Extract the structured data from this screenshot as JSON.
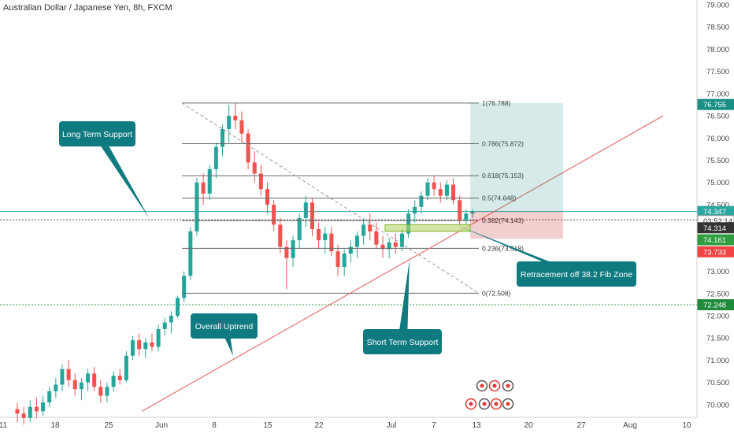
{
  "title": "Australian Dollar / Japanese Yen, 8h, FXCM",
  "chart_data": {
    "type": "candlestick",
    "title": "Australian Dollar / Japanese Yen, 8h, FXCM",
    "ylim": [
      69.75,
      79.0
    ],
    "y_ticks": [
      "79.000",
      "78.500",
      "78.000",
      "77.500",
      "77.000",
      "76.500",
      "76.000",
      "75.500",
      "75.000",
      "74.500",
      "74.000",
      "73.500",
      "73.000",
      "72.500",
      "72.000",
      "71.500",
      "71.000",
      "70.500",
      "70.000"
    ],
    "x_ticks": [
      "11",
      "18",
      "25",
      "Jun",
      "8",
      "15",
      "22",
      "Jul",
      "7",
      "13",
      "20",
      "27",
      "Aug",
      "10"
    ],
    "price_labels": [
      {
        "value": "76.755",
        "color": "#1a8f85"
      },
      {
        "value": "74.347",
        "color": "#2aa7a0"
      },
      {
        "value": "03:52:14",
        "color": "#ffffff",
        "text_color": "#333333"
      },
      {
        "value": "74.314",
        "color": "#333333"
      },
      {
        "value": "74.161",
        "color": "#2e9e3e"
      },
      {
        "value": "73.733",
        "color": "#ef4444"
      },
      {
        "value": "72.248",
        "color": "#1e8a3a"
      }
    ],
    "fib_levels": [
      {
        "label": "1(76.788)",
        "value": 76.788
      },
      {
        "label": "0.786(75.872)",
        "value": 75.872
      },
      {
        "label": "0.618(75.153)",
        "value": 75.153
      },
      {
        "label": "0.5(74.648)",
        "value": 74.648
      },
      {
        "label": "0.382(74.143)",
        "value": 74.143
      },
      {
        "label": "0.236(73.518)",
        "value": 73.518
      },
      {
        "label": "0(72.508)",
        "value": 72.508
      }
    ],
    "annotations": [
      {
        "text": "Long Term Support"
      },
      {
        "text": "Overall Uptrend"
      },
      {
        "text": "Short Term Support"
      },
      {
        "text": "Retracement off 38.2 Fib Zone"
      }
    ],
    "horizontal_lines": [
      {
        "value": 74.347,
        "color": "#2aa7a0",
        "style": "solid"
      },
      {
        "value": 74.16,
        "color": "#555555",
        "style": "dotted"
      },
      {
        "value": 72.248,
        "color": "#3aa34a",
        "style": "dotted"
      }
    ],
    "colors": {
      "up": "#26a69a",
      "down": "#ef5350",
      "trend": "#e57373",
      "callout": "#0f7a80"
    },
    "candles": [
      {
        "o": 69.9,
        "h": 70.05,
        "l": 69.6,
        "c": 69.8
      },
      {
        "o": 69.8,
        "h": 69.95,
        "l": 69.55,
        "c": 69.7
      },
      {
        "o": 69.7,
        "h": 70.1,
        "l": 69.6,
        "c": 69.95
      },
      {
        "o": 69.95,
        "h": 70.15,
        "l": 69.7,
        "c": 69.85
      },
      {
        "o": 69.85,
        "h": 70.2,
        "l": 69.75,
        "c": 70.05
      },
      {
        "o": 70.05,
        "h": 70.4,
        "l": 69.95,
        "c": 70.3
      },
      {
        "o": 70.3,
        "h": 70.6,
        "l": 70.15,
        "c": 70.45
      },
      {
        "o": 70.45,
        "h": 70.9,
        "l": 70.3,
        "c": 70.8
      },
      {
        "o": 70.8,
        "h": 71.0,
        "l": 70.4,
        "c": 70.55
      },
      {
        "o": 70.55,
        "h": 70.7,
        "l": 70.2,
        "c": 70.35
      },
      {
        "o": 70.35,
        "h": 70.6,
        "l": 70.1,
        "c": 70.5
      },
      {
        "o": 70.5,
        "h": 70.8,
        "l": 70.3,
        "c": 70.7
      },
      {
        "o": 70.7,
        "h": 70.85,
        "l": 70.3,
        "c": 70.4
      },
      {
        "o": 70.4,
        "h": 70.55,
        "l": 70.05,
        "c": 70.2
      },
      {
        "o": 70.2,
        "h": 70.5,
        "l": 70.05,
        "c": 70.4
      },
      {
        "o": 70.4,
        "h": 70.75,
        "l": 70.3,
        "c": 70.65
      },
      {
        "o": 70.65,
        "h": 70.8,
        "l": 70.45,
        "c": 70.55
      },
      {
        "o": 70.55,
        "h": 71.2,
        "l": 70.5,
        "c": 71.1
      },
      {
        "o": 71.1,
        "h": 71.55,
        "l": 71.0,
        "c": 71.45
      },
      {
        "o": 71.45,
        "h": 71.6,
        "l": 71.1,
        "c": 71.25
      },
      {
        "o": 71.25,
        "h": 71.5,
        "l": 71.05,
        "c": 71.4
      },
      {
        "o": 71.4,
        "h": 71.6,
        "l": 71.2,
        "c": 71.3
      },
      {
        "o": 71.3,
        "h": 71.8,
        "l": 71.2,
        "c": 71.7
      },
      {
        "o": 71.7,
        "h": 71.95,
        "l": 71.55,
        "c": 71.85
      },
      {
        "o": 71.85,
        "h": 72.1,
        "l": 71.6,
        "c": 72.0
      },
      {
        "o": 72.0,
        "h": 72.45,
        "l": 71.95,
        "c": 72.4
      },
      {
        "o": 72.4,
        "h": 73.0,
        "l": 72.3,
        "c": 72.9
      },
      {
        "o": 72.9,
        "h": 74.0,
        "l": 72.8,
        "c": 73.9
      },
      {
        "o": 73.9,
        "h": 75.1,
        "l": 73.8,
        "c": 75.0
      },
      {
        "o": 75.0,
        "h": 75.2,
        "l": 74.5,
        "c": 74.75
      },
      {
        "o": 74.75,
        "h": 75.4,
        "l": 74.6,
        "c": 75.3
      },
      {
        "o": 75.3,
        "h": 75.9,
        "l": 75.1,
        "c": 75.8
      },
      {
        "o": 75.8,
        "h": 76.3,
        "l": 75.6,
        "c": 76.2
      },
      {
        "o": 76.2,
        "h": 76.75,
        "l": 75.9,
        "c": 76.5
      },
      {
        "o": 76.5,
        "h": 76.79,
        "l": 76.2,
        "c": 76.4
      },
      {
        "o": 76.4,
        "h": 76.6,
        "l": 75.9,
        "c": 76.1
      },
      {
        "o": 76.1,
        "h": 76.2,
        "l": 75.3,
        "c": 75.45
      },
      {
        "o": 75.45,
        "h": 75.7,
        "l": 75.0,
        "c": 75.2
      },
      {
        "o": 75.2,
        "h": 75.4,
        "l": 74.7,
        "c": 74.85
      },
      {
        "o": 74.85,
        "h": 75.0,
        "l": 74.3,
        "c": 74.5
      },
      {
        "o": 74.5,
        "h": 74.6,
        "l": 73.9,
        "c": 74.05
      },
      {
        "o": 74.05,
        "h": 74.2,
        "l": 73.4,
        "c": 73.55
      },
      {
        "o": 73.55,
        "h": 73.7,
        "l": 72.6,
        "c": 73.3
      },
      {
        "o": 73.3,
        "h": 73.8,
        "l": 73.1,
        "c": 73.7
      },
      {
        "o": 73.7,
        "h": 74.3,
        "l": 73.5,
        "c": 74.2
      },
      {
        "o": 74.2,
        "h": 74.7,
        "l": 74.0,
        "c": 74.55
      },
      {
        "o": 74.55,
        "h": 74.65,
        "l": 73.8,
        "c": 73.95
      },
      {
        "o": 73.95,
        "h": 74.1,
        "l": 73.5,
        "c": 73.7
      },
      {
        "o": 73.7,
        "h": 74.0,
        "l": 73.4,
        "c": 73.85
      },
      {
        "o": 73.85,
        "h": 74.0,
        "l": 73.35,
        "c": 73.45
      },
      {
        "o": 73.45,
        "h": 73.6,
        "l": 72.9,
        "c": 73.1
      },
      {
        "o": 73.1,
        "h": 73.5,
        "l": 72.9,
        "c": 73.4
      },
      {
        "o": 73.4,
        "h": 73.7,
        "l": 73.2,
        "c": 73.55
      },
      {
        "o": 73.55,
        "h": 73.9,
        "l": 73.3,
        "c": 73.8
      },
      {
        "o": 73.8,
        "h": 74.2,
        "l": 73.6,
        "c": 74.05
      },
      {
        "o": 74.05,
        "h": 74.3,
        "l": 73.7,
        "c": 73.9
      },
      {
        "o": 73.9,
        "h": 74.1,
        "l": 73.5,
        "c": 73.6
      },
      {
        "o": 73.6,
        "h": 73.8,
        "l": 73.3,
        "c": 73.5
      },
      {
        "o": 73.5,
        "h": 73.75,
        "l": 73.3,
        "c": 73.65
      },
      {
        "o": 73.65,
        "h": 73.85,
        "l": 73.4,
        "c": 73.55
      },
      {
        "o": 73.55,
        "h": 73.95,
        "l": 73.45,
        "c": 73.85
      },
      {
        "o": 73.85,
        "h": 74.4,
        "l": 73.75,
        "c": 74.3
      },
      {
        "o": 74.3,
        "h": 74.6,
        "l": 74.1,
        "c": 74.45
      },
      {
        "o": 74.45,
        "h": 74.8,
        "l": 74.3,
        "c": 74.7
      },
      {
        "o": 74.7,
        "h": 75.1,
        "l": 74.6,
        "c": 75.0
      },
      {
        "o": 75.0,
        "h": 75.15,
        "l": 74.7,
        "c": 74.85
      },
      {
        "o": 74.85,
        "h": 75.0,
        "l": 74.55,
        "c": 74.7
      },
      {
        "o": 74.7,
        "h": 75.05,
        "l": 74.6,
        "c": 74.95
      },
      {
        "o": 74.95,
        "h": 75.1,
        "l": 74.5,
        "c": 74.6
      },
      {
        "o": 74.6,
        "h": 74.7,
        "l": 74.05,
        "c": 74.15
      },
      {
        "o": 74.15,
        "h": 74.4,
        "l": 74.05,
        "c": 74.3
      },
      {
        "o": 74.3,
        "h": 74.4,
        "l": 74.2,
        "c": 74.35
      }
    ]
  }
}
